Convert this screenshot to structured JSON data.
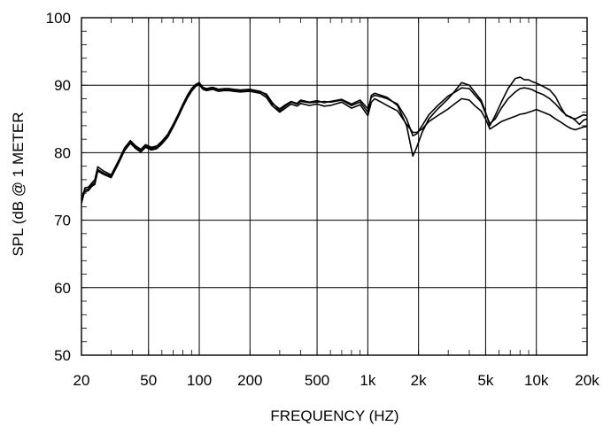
{
  "chart_data": {
    "type": "line",
    "title": "",
    "xlabel": "FREQUENCY  (HZ)",
    "ylabel": "SPL (dB @ 1 METER",
    "x_scale": "log",
    "xlim": [
      20,
      20000
    ],
    "ylim": [
      50,
      100
    ],
    "grid": true,
    "x_ticks": [
      {
        "value": 20,
        "label": "20"
      },
      {
        "value": 50,
        "label": "50"
      },
      {
        "value": 100,
        "label": "100"
      },
      {
        "value": 200,
        "label": "200"
      },
      {
        "value": 500,
        "label": "500"
      },
      {
        "value": 1000,
        "label": "1k"
      },
      {
        "value": 2000,
        "label": "2k"
      },
      {
        "value": 5000,
        "label": "5k"
      },
      {
        "value": 10000,
        "label": "10k"
      },
      {
        "value": 20000,
        "label": "20k"
      }
    ],
    "y_ticks": [
      {
        "value": 50,
        "label": "50"
      },
      {
        "value": 60,
        "label": "60"
      },
      {
        "value": 70,
        "label": "70"
      },
      {
        "value": 80,
        "label": "80"
      },
      {
        "value": 90,
        "label": "90"
      },
      {
        "value": 100,
        "label": "100"
      }
    ],
    "line_color": "#000000",
    "series": [
      {
        "x": [
          20,
          21,
          22,
          23,
          24,
          25,
          27,
          30,
          33,
          36,
          39,
          42,
          45,
          48,
          52,
          56,
          60,
          65,
          70,
          75,
          80,
          85,
          90,
          95,
          100,
          105,
          110,
          120,
          130,
          140,
          150,
          160,
          175,
          200,
          230,
          250,
          270,
          300,
          320,
          350,
          380,
          400,
          450,
          500,
          550,
          600,
          700,
          800,
          900,
          1000,
          1050,
          1100,
          1200,
          1300,
          1500,
          1700,
          1850,
          1950,
          2100,
          2300,
          2600,
          3000,
          3300,
          3600,
          4000,
          4300,
          4700,
          5000,
          5300,
          5700,
          6200,
          6800,
          7500,
          8000,
          8500,
          9000,
          9500,
          10000,
          11000,
          12000,
          13000,
          14000,
          15000,
          16000,
          17000,
          18000,
          19000,
          20000
        ],
        "values": [
          72.5,
          74.5,
          74.6,
          75.2,
          75.6,
          77.5,
          77.0,
          76.5,
          78.5,
          80.5,
          81.6,
          80.8,
          80.3,
          81.0,
          80.6,
          80.8,
          81.5,
          82.5,
          84.0,
          85.5,
          87.0,
          88.3,
          89.3,
          90.0,
          90.3,
          89.6,
          89.4,
          89.6,
          89.3,
          89.4,
          89.4,
          89.3,
          89.2,
          89.3,
          89.0,
          88.7,
          87.5,
          86.2,
          86.8,
          87.5,
          87.2,
          87.6,
          87.4,
          87.5,
          87.6,
          87.5,
          87.8,
          87.0,
          87.5,
          86.0,
          88.5,
          88.8,
          88.5,
          88.2,
          87.0,
          84.0,
          79.5,
          80.8,
          83.0,
          85.0,
          86.5,
          88.0,
          89.2,
          90.4,
          90.0,
          89.0,
          87.8,
          86.0,
          84.0,
          85.5,
          87.5,
          89.5,
          91.0,
          91.2,
          90.8,
          90.8,
          90.5,
          90.3,
          89.8,
          89.3,
          88.3,
          86.7,
          85.5,
          85.3,
          84.8,
          84.2,
          84.8,
          85.0
        ]
      },
      {
        "x": [
          20,
          21,
          22,
          23,
          24,
          25,
          27,
          30,
          33,
          36,
          39,
          42,
          45,
          48,
          52,
          56,
          60,
          65,
          70,
          75,
          80,
          85,
          90,
          95,
          100,
          105,
          110,
          120,
          130,
          140,
          150,
          160,
          175,
          200,
          230,
          250,
          270,
          300,
          320,
          350,
          380,
          400,
          450,
          500,
          550,
          600,
          700,
          800,
          900,
          1000,
          1050,
          1100,
          1200,
          1300,
          1500,
          1700,
          1850,
          1950,
          2100,
          2300,
          2600,
          3000,
          3300,
          3600,
          4000,
          4300,
          4700,
          5000,
          5300,
          5700,
          6200,
          6800,
          7500,
          8000,
          8500,
          9000,
          9500,
          10000,
          11000,
          12000,
          13000,
          14000,
          15000,
          16000,
          17000,
          18000,
          19000,
          20000
        ],
        "values": [
          73.0,
          74.8,
          74.9,
          75.5,
          76.0,
          77.9,
          77.3,
          76.7,
          78.7,
          80.7,
          81.8,
          81.0,
          80.5,
          81.2,
          80.8,
          81.0,
          81.7,
          82.7,
          84.2,
          85.7,
          87.2,
          88.5,
          89.5,
          90.1,
          90.4,
          89.7,
          89.5,
          89.7,
          89.4,
          89.5,
          89.5,
          89.4,
          89.3,
          89.4,
          89.1,
          88.5,
          87.3,
          86.5,
          87.0,
          87.6,
          87.3,
          87.8,
          87.5,
          87.7,
          87.4,
          87.6,
          87.9,
          87.2,
          87.8,
          86.5,
          88.2,
          88.5,
          88.3,
          88.0,
          87.2,
          85.0,
          82.5,
          82.8,
          84.0,
          85.6,
          87.0,
          88.4,
          89.0,
          89.6,
          89.5,
          88.6,
          87.5,
          85.8,
          84.3,
          85.0,
          86.6,
          88.0,
          89.0,
          89.5,
          89.6,
          89.5,
          89.3,
          89.0,
          88.6,
          88.0,
          87.2,
          86.3,
          85.6,
          85.2,
          85.0,
          85.3,
          85.6,
          85.5
        ]
      },
      {
        "x": [
          20,
          21,
          22,
          23,
          24,
          25,
          27,
          30,
          33,
          36,
          39,
          42,
          45,
          48,
          52,
          56,
          60,
          65,
          70,
          75,
          80,
          85,
          90,
          95,
          100,
          105,
          110,
          120,
          130,
          140,
          150,
          160,
          175,
          200,
          230,
          250,
          270,
          300,
          320,
          350,
          380,
          400,
          450,
          500,
          550,
          600,
          700,
          800,
          900,
          1000,
          1050,
          1100,
          1200,
          1300,
          1500,
          1700,
          1850,
          1950,
          2100,
          2300,
          2600,
          3000,
          3300,
          3600,
          4000,
          4300,
          4700,
          5000,
          5300,
          5700,
          6200,
          6800,
          7500,
          8000,
          8500,
          9000,
          9500,
          10000,
          11000,
          12000,
          13000,
          14000,
          15000,
          16000,
          17000,
          18000,
          19000,
          20000
        ],
        "values": [
          73.4,
          74.2,
          74.4,
          75.0,
          75.3,
          77.3,
          76.8,
          76.3,
          78.3,
          80.3,
          81.4,
          80.6,
          80.1,
          80.8,
          80.4,
          80.6,
          81.3,
          82.3,
          83.8,
          85.3,
          86.8,
          88.1,
          89.1,
          89.8,
          90.1,
          89.4,
          89.2,
          89.4,
          89.1,
          89.2,
          89.2,
          89.1,
          89.0,
          89.1,
          88.8,
          88.2,
          87.0,
          86.0,
          86.5,
          87.2,
          86.9,
          87.3,
          87.0,
          87.2,
          86.9,
          87.0,
          87.5,
          86.6,
          87.1,
          85.5,
          87.5,
          88.0,
          87.5,
          87.0,
          86.2,
          84.2,
          83.0,
          83.0,
          83.5,
          84.6,
          85.5,
          86.5,
          87.3,
          88.0,
          87.8,
          87.0,
          86.2,
          85.0,
          83.5,
          84.0,
          84.6,
          85.0,
          85.4,
          85.7,
          85.8,
          86.0,
          86.2,
          86.4,
          86.0,
          85.6,
          85.0,
          84.5,
          84.0,
          83.6,
          83.4,
          83.6,
          83.8,
          83.9
        ]
      }
    ]
  }
}
